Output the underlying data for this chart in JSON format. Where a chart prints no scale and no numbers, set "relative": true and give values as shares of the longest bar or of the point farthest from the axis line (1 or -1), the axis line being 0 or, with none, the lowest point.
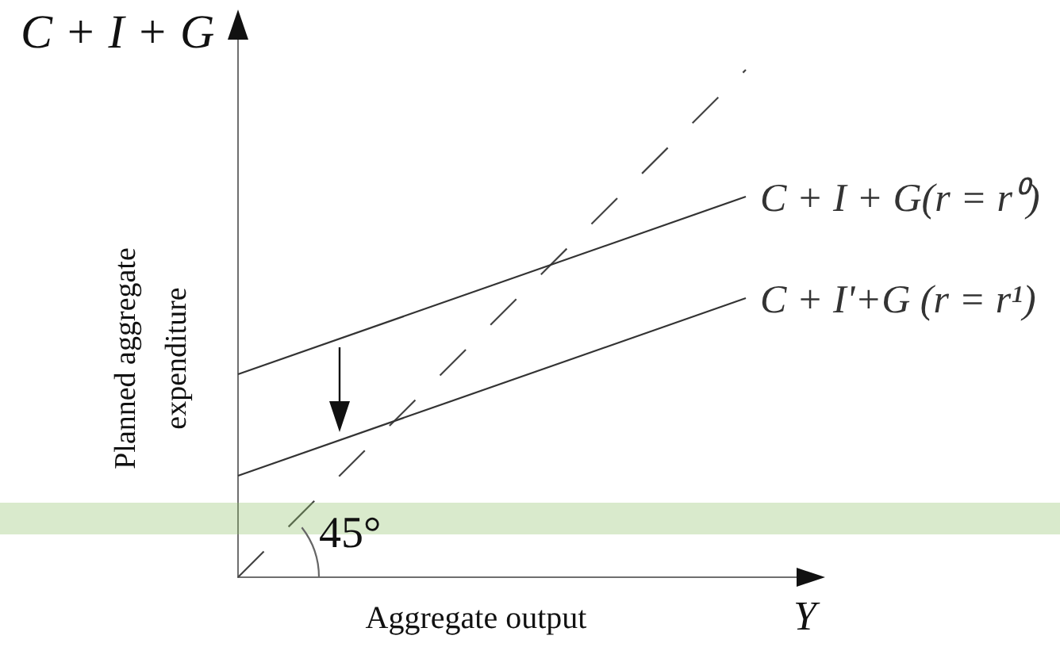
{
  "chart_data": {
    "type": "line",
    "xlabel": "Aggregate output",
    "ylabel": "Planned aggregate expenditure",
    "annotations": [
      "C + I + G",
      "Y",
      "45°"
    ],
    "categories": [
      null,
      null
    ],
    "series": [
      {
        "name": "C + I + G(r = r⁰)",
        "color": "#333333",
        "values": [
          0.4,
          0.75
        ]
      },
      {
        "name": "C + I'+G (r = r¹)",
        "color": "#333333",
        "values": [
          0.2,
          0.55
        ]
      },
      {
        "color": "#444444",
        "values": [
          0,
          1
        ],
        "line_style": "dashed"
      }
    ],
    "relative": true,
    "legend": false,
    "marker": "none",
    "line_style": "solid"
  }
}
